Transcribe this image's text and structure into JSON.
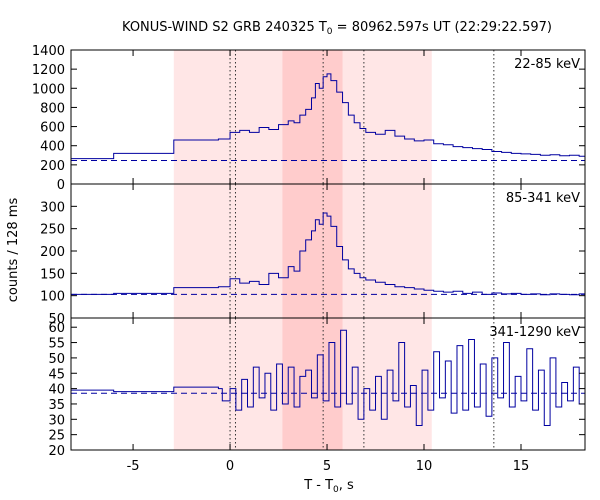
{
  "chart_data": {
    "type": "line",
    "title_main": "KONUS-WIND S2 GRB 240325 T",
    "title_sub": "0",
    "title_rest": " = 80962.597s UT (22:29:22.597)",
    "xlabel_main": "T - T",
    "xlabel_sub": "0",
    "xlabel_rest": ", s",
    "ylabel": "counts / 128 ms",
    "xlim": [
      -8.2,
      18.3
    ],
    "x_ticks": [
      -5,
      0,
      5,
      10,
      15
    ],
    "shaded_regions": [
      {
        "x0": -2.9,
        "x1": 10.4,
        "color": "#ffe6e6"
      },
      {
        "x0": 2.7,
        "x1": 5.8,
        "color": "#ffcccc"
      }
    ],
    "vertical_lines": [
      0.0,
      0.28,
      4.8,
      6.9,
      13.6
    ],
    "line_color": "#0000a0",
    "panels": [
      {
        "label": "22-85 keV",
        "ylim": [
          0,
          1400
        ],
        "y_ticks": [
          0,
          200,
          400,
          600,
          800,
          1000,
          1200,
          1400
        ],
        "background": 245,
        "points": [
          [
            -8.2,
            265
          ],
          [
            -6.0,
            320
          ],
          [
            -2.9,
            460
          ],
          [
            -0.6,
            470
          ],
          [
            0.0,
            540
          ],
          [
            0.5,
            560
          ],
          [
            1.0,
            540
          ],
          [
            1.5,
            590
          ],
          [
            2.0,
            570
          ],
          [
            2.5,
            620
          ],
          [
            3.0,
            660
          ],
          [
            3.3,
            640
          ],
          [
            3.6,
            720
          ],
          [
            3.9,
            780
          ],
          [
            4.2,
            900
          ],
          [
            4.4,
            1050
          ],
          [
            4.6,
            1000
          ],
          [
            4.8,
            1120
          ],
          [
            5.0,
            1150
          ],
          [
            5.2,
            1080
          ],
          [
            5.5,
            960
          ],
          [
            5.8,
            850
          ],
          [
            6.1,
            720
          ],
          [
            6.4,
            640
          ],
          [
            6.7,
            580
          ],
          [
            7.0,
            540
          ],
          [
            7.5,
            520
          ],
          [
            8.0,
            560
          ],
          [
            8.5,
            500
          ],
          [
            9.0,
            470
          ],
          [
            9.5,
            450
          ],
          [
            10.0,
            460
          ],
          [
            10.5,
            420
          ],
          [
            11.0,
            410
          ],
          [
            11.5,
            390
          ],
          [
            12.0,
            380
          ],
          [
            12.5,
            370
          ],
          [
            13.0,
            360
          ],
          [
            13.5,
            340
          ],
          [
            14.0,
            330
          ],
          [
            14.5,
            320
          ],
          [
            15.0,
            315
          ],
          [
            15.5,
            310
          ],
          [
            16.0,
            300
          ],
          [
            16.5,
            305
          ],
          [
            17.0,
            295
          ],
          [
            17.5,
            300
          ],
          [
            18.0,
            290
          ],
          [
            18.3,
            300
          ]
        ]
      },
      {
        "label": "85-341 keV",
        "ylim": [
          50,
          350
        ],
        "y_ticks": [
          50,
          100,
          150,
          200,
          250,
          300
        ],
        "background": 103,
        "points": [
          [
            -8.2,
            103
          ],
          [
            -6.0,
            105
          ],
          [
            -2.9,
            118
          ],
          [
            -0.6,
            120
          ],
          [
            0.0,
            138
          ],
          [
            0.5,
            128
          ],
          [
            1.0,
            132
          ],
          [
            1.5,
            125
          ],
          [
            2.0,
            150
          ],
          [
            2.5,
            140
          ],
          [
            3.0,
            165
          ],
          [
            3.3,
            155
          ],
          [
            3.6,
            200
          ],
          [
            3.9,
            225
          ],
          [
            4.2,
            245
          ],
          [
            4.4,
            270
          ],
          [
            4.6,
            260
          ],
          [
            4.8,
            285
          ],
          [
            5.0,
            278
          ],
          [
            5.2,
            255
          ],
          [
            5.5,
            210
          ],
          [
            5.8,
            180
          ],
          [
            6.1,
            160
          ],
          [
            6.4,
            150
          ],
          [
            6.7,
            140
          ],
          [
            7.0,
            135
          ],
          [
            7.5,
            130
          ],
          [
            8.0,
            125
          ],
          [
            8.5,
            120
          ],
          [
            9.0,
            118
          ],
          [
            9.5,
            115
          ],
          [
            10.0,
            112
          ],
          [
            10.5,
            110
          ],
          [
            11.0,
            108
          ],
          [
            11.5,
            110
          ],
          [
            12.0,
            105
          ],
          [
            12.5,
            108
          ],
          [
            13.0,
            103
          ],
          [
            13.5,
            106
          ],
          [
            14.0,
            104
          ],
          [
            14.5,
            105
          ],
          [
            15.0,
            103
          ],
          [
            15.5,
            104
          ],
          [
            16.0,
            102
          ],
          [
            16.5,
            104
          ],
          [
            17.0,
            103
          ],
          [
            17.5,
            102
          ],
          [
            18.0,
            104
          ],
          [
            18.3,
            103
          ]
        ]
      },
      {
        "label": "341-1290 keV",
        "ylim": [
          20,
          63
        ],
        "y_ticks": [
          20,
          25,
          30,
          35,
          40,
          45,
          50,
          55,
          60
        ],
        "background": 38.5,
        "points": [
          [
            -8.2,
            39.5
          ],
          [
            -6.0,
            39
          ],
          [
            -2.9,
            40.5
          ],
          [
            -0.6,
            40
          ],
          [
            -0.4,
            36
          ],
          [
            0.0,
            40
          ],
          [
            0.3,
            33
          ],
          [
            0.6,
            43
          ],
          [
            0.9,
            34
          ],
          [
            1.2,
            47
          ],
          [
            1.5,
            37
          ],
          [
            1.8,
            45
          ],
          [
            2.1,
            33
          ],
          [
            2.4,
            48
          ],
          [
            2.7,
            35
          ],
          [
            3.0,
            47
          ],
          [
            3.3,
            34
          ],
          [
            3.6,
            44
          ],
          [
            3.9,
            46
          ],
          [
            4.2,
            37
          ],
          [
            4.5,
            51
          ],
          [
            4.8,
            36
          ],
          [
            5.1,
            55
          ],
          [
            5.4,
            34
          ],
          [
            5.7,
            59
          ],
          [
            6.0,
            35
          ],
          [
            6.3,
            47
          ],
          [
            6.6,
            30
          ],
          [
            6.9,
            40
          ],
          [
            7.2,
            33
          ],
          [
            7.5,
            44
          ],
          [
            7.8,
            30
          ],
          [
            8.1,
            46
          ],
          [
            8.4,
            36
          ],
          [
            8.7,
            55
          ],
          [
            9.0,
            34
          ],
          [
            9.3,
            41
          ],
          [
            9.6,
            28
          ],
          [
            9.9,
            46
          ],
          [
            10.2,
            33
          ],
          [
            10.5,
            52
          ],
          [
            10.8,
            37
          ],
          [
            11.1,
            49
          ],
          [
            11.4,
            32
          ],
          [
            11.7,
            54
          ],
          [
            12.0,
            33
          ],
          [
            12.3,
            56
          ],
          [
            12.6,
            34
          ],
          [
            12.9,
            48
          ],
          [
            13.2,
            31
          ],
          [
            13.5,
            50
          ],
          [
            13.8,
            37
          ],
          [
            14.1,
            55
          ],
          [
            14.4,
            34
          ],
          [
            14.7,
            44
          ],
          [
            15.0,
            36
          ],
          [
            15.3,
            53
          ],
          [
            15.6,
            33
          ],
          [
            15.9,
            46
          ],
          [
            16.2,
            28
          ],
          [
            16.5,
            50
          ],
          [
            16.8,
            34
          ],
          [
            17.1,
            42
          ],
          [
            17.4,
            36
          ],
          [
            17.7,
            47
          ],
          [
            18.0,
            35
          ],
          [
            18.3,
            40
          ]
        ]
      }
    ]
  }
}
